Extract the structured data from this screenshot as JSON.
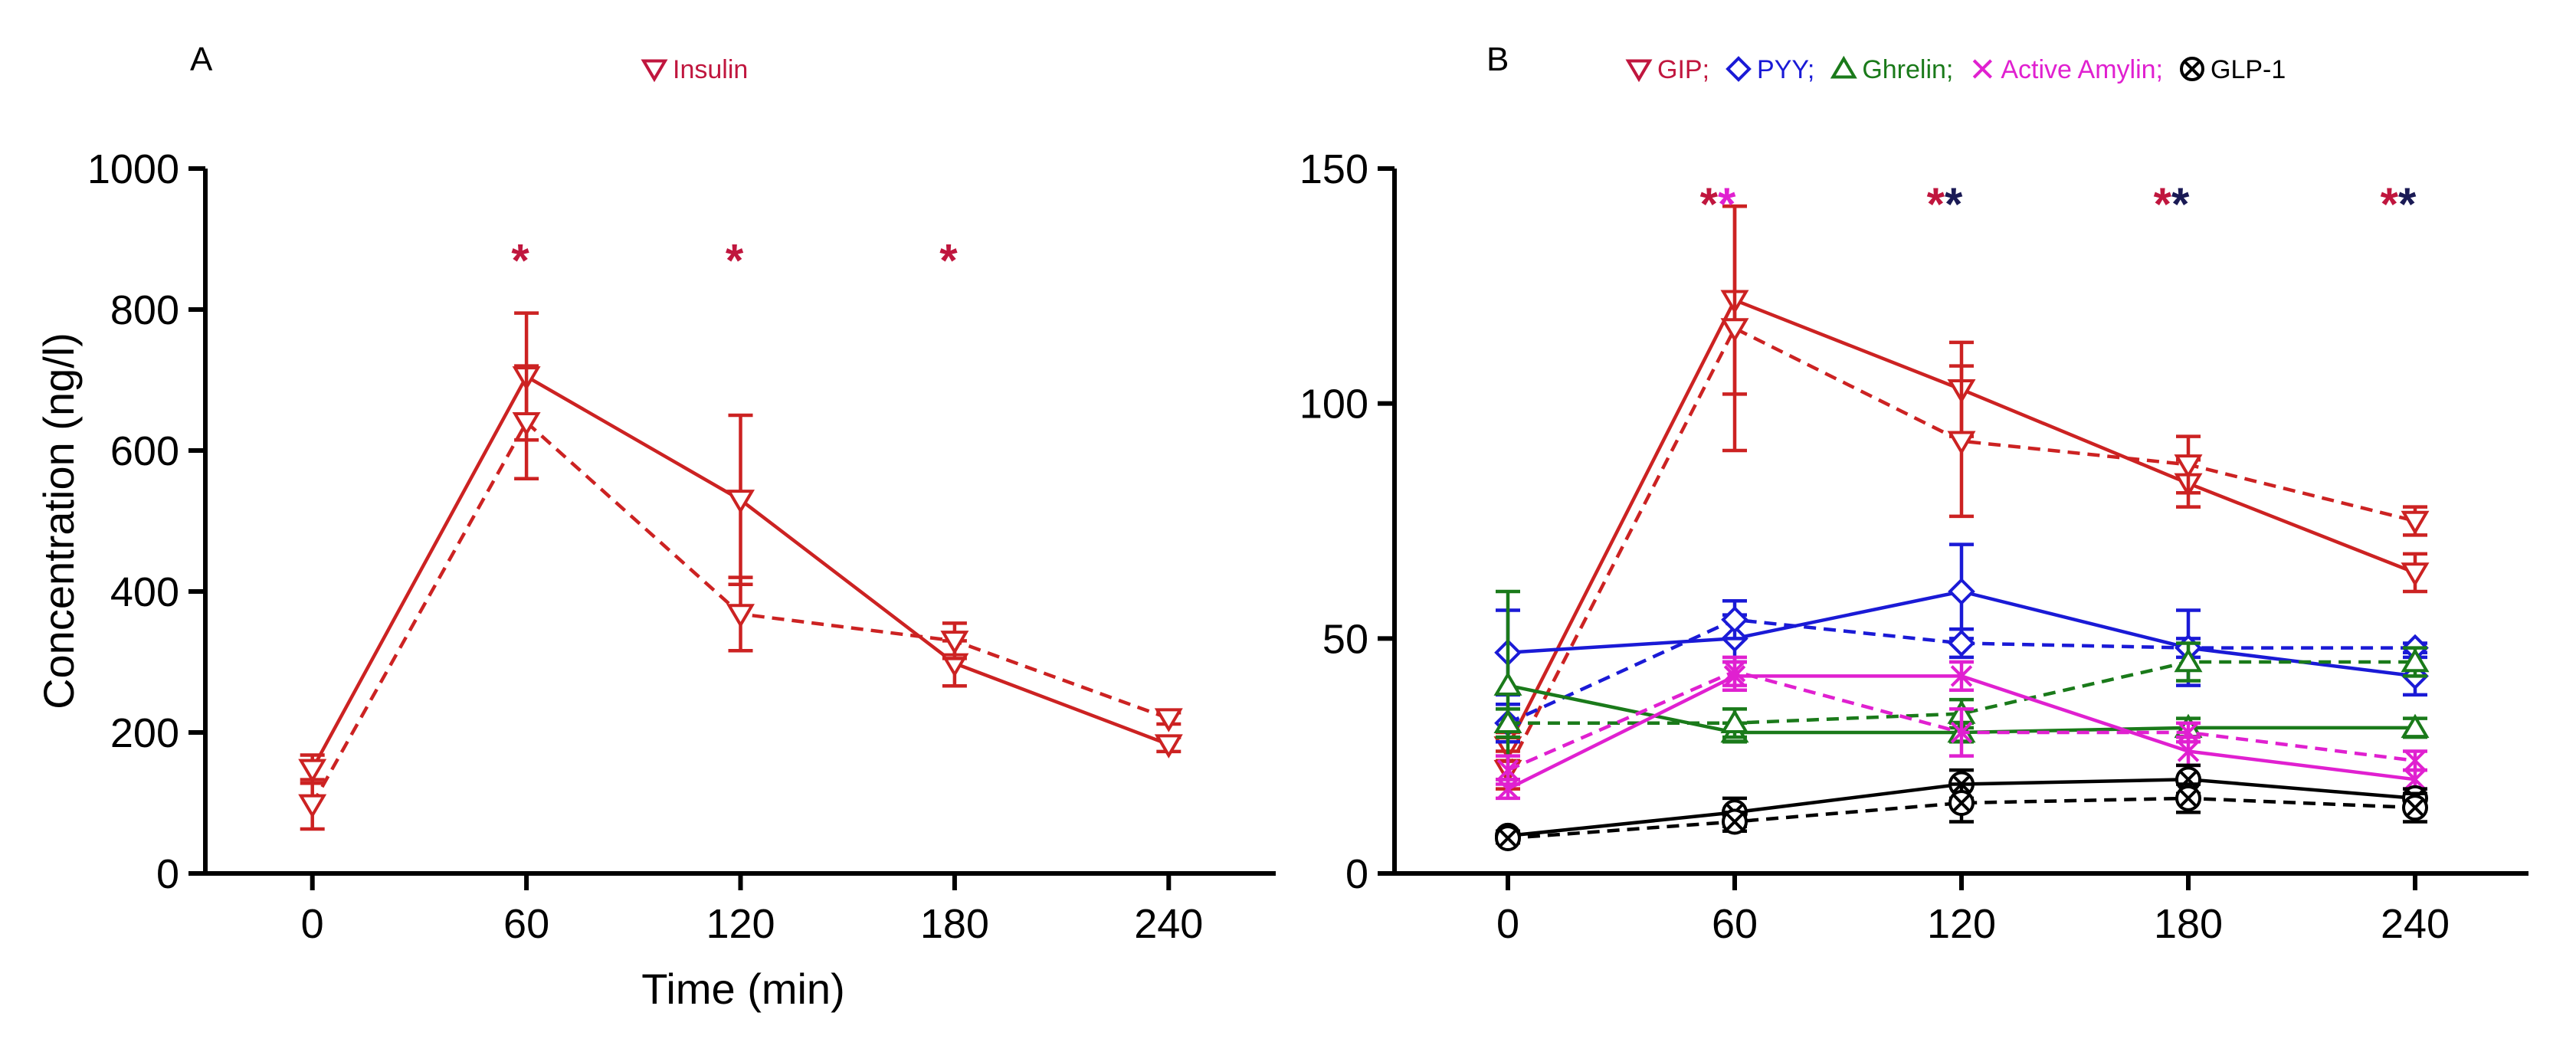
{
  "chart_data": [
    {
      "panel": "A",
      "type": "line",
      "xlabel": "Time (min)",
      "ylabel": "Concentration (ng/l)",
      "x": [
        0,
        60,
        120,
        180,
        240
      ],
      "xlim": [
        -30,
        270
      ],
      "ylim": [
        0,
        1000
      ],
      "yticks": [
        0,
        200,
        400,
        600,
        800,
        1000
      ],
      "xticks": [
        0,
        60,
        120,
        180,
        240
      ],
      "legend": [
        {
          "label": "Insulin",
          "marker": "triangle-down",
          "color": "#c0163e"
        }
      ],
      "series": [
        {
          "name": "Insulin (solid)",
          "style": "solid",
          "marker": "triangle-down",
          "color": "#cc2222",
          "values": [
            148,
            705,
            530,
            298,
            183
          ],
          "err": [
            20,
            90,
            120,
            32,
            10
          ]
        },
        {
          "name": "Insulin (dashed)",
          "style": "dashed",
          "marker": "triangle-down",
          "color": "#cc2222",
          "values": [
            98,
            640,
            368,
            330,
            220
          ],
          "err": [
            35,
            80,
            52,
            25,
            8
          ]
        }
      ],
      "annotations": [
        {
          "x": 60,
          "y": 880,
          "marks": [
            {
              "text": "*",
              "color": "#c0163e"
            }
          ]
        },
        {
          "x": 120,
          "y": 880,
          "marks": [
            {
              "text": "*",
              "color": "#c0163e"
            }
          ]
        },
        {
          "x": 180,
          "y": 880,
          "marks": [
            {
              "text": "*",
              "color": "#c0163e"
            }
          ]
        }
      ]
    },
    {
      "panel": "B",
      "type": "line",
      "xlabel": "",
      "ylabel": "",
      "x": [
        0,
        60,
        120,
        180,
        240
      ],
      "xlim": [
        -30,
        270
      ],
      "ylim": [
        0,
        150
      ],
      "yticks": [
        0,
        50,
        100,
        150
      ],
      "xticks": [
        0,
        60,
        120,
        180,
        240
      ],
      "legend": [
        {
          "label": "GIP;",
          "marker": "triangle-down",
          "color": "#c0163e"
        },
        {
          "label": "PYY;",
          "marker": "diamond",
          "color": "#1a1ad6"
        },
        {
          "label": "Ghrelin;",
          "marker": "triangle-up",
          "color": "#1a7a1a"
        },
        {
          "label": "Active Amylin;",
          "marker": "x",
          "color": "#e020d0"
        },
        {
          "label": "GLP-1",
          "marker": "circle-x",
          "color": "#000000"
        }
      ],
      "series": [
        {
          "name": "GIP (solid)",
          "style": "solid",
          "marker": "triangle-down",
          "color": "#cc2222",
          "values": [
            27,
            122,
            103,
            83,
            64
          ],
          "err": [
            3,
            20,
            10,
            5,
            4
          ]
        },
        {
          "name": "GIP (dashed)",
          "style": "dashed",
          "marker": "triangle-down",
          "color": "#cc2222",
          "values": [
            22,
            116,
            92,
            87,
            75
          ],
          "err": [
            4,
            26,
            16,
            6,
            3
          ]
        },
        {
          "name": "PYY (solid)",
          "style": "solid",
          "marker": "diamond",
          "color": "#1a1ad6",
          "values": [
            47,
            50,
            60,
            48,
            42
          ],
          "err": [
            9,
            5,
            10,
            8,
            4
          ]
        },
        {
          "name": "PYY (dashed)",
          "style": "dashed",
          "marker": "diamond",
          "color": "#1a1ad6",
          "values": [
            32,
            54,
            49,
            48,
            48
          ],
          "err": [
            4,
            4,
            3,
            2,
            1
          ]
        },
        {
          "name": "Ghrelin (solid)",
          "style": "solid",
          "marker": "triangle-up",
          "color": "#1a7a1a",
          "values": [
            40,
            30,
            30,
            31,
            31
          ],
          "err": [
            20,
            2,
            2,
            2,
            2
          ]
        },
        {
          "name": "Ghrelin (dashed)",
          "style": "dashed",
          "marker": "triangle-up",
          "color": "#1a7a1a",
          "values": [
            32,
            32,
            34,
            45,
            45
          ],
          "err": [
            3,
            3,
            3,
            4,
            3
          ]
        },
        {
          "name": "Active Amylin (solid)",
          "style": "solid",
          "marker": "x",
          "color": "#e020d0",
          "values": [
            18,
            42,
            42,
            26,
            20
          ],
          "err": [
            2,
            3,
            3,
            3,
            2
          ]
        },
        {
          "name": "Active Amylin (dashed)",
          "style": "dashed",
          "marker": "x",
          "color": "#e020d0",
          "values": [
            22,
            43,
            30,
            30,
            24
          ],
          "err": [
            3,
            3,
            5,
            2,
            2
          ]
        },
        {
          "name": "GLP-1 (solid)",
          "style": "solid",
          "marker": "circle-x",
          "color": "#000000",
          "values": [
            8,
            13,
            19,
            20,
            16
          ],
          "err": [
            1,
            3,
            3,
            3,
            2
          ]
        },
        {
          "name": "GLP-1 (dashed)",
          "style": "dashed",
          "marker": "circle-x",
          "color": "#000000",
          "values": [
            7.5,
            11,
            15,
            16,
            14
          ],
          "err": [
            1,
            2,
            4,
            3,
            3
          ]
        }
      ],
      "annotations": [
        {
          "x": 60,
          "y": 144,
          "marks": [
            {
              "text": "*",
              "color": "#c0163e"
            },
            {
              "text": "*",
              "color": "#e020d0"
            }
          ]
        },
        {
          "x": 120,
          "y": 144,
          "marks": [
            {
              "text": "*",
              "color": "#c0163e"
            },
            {
              "text": "*",
              "color": "#1a1a55"
            }
          ]
        },
        {
          "x": 180,
          "y": 144,
          "marks": [
            {
              "text": "*",
              "color": "#c0163e"
            },
            {
              "text": "*",
              "color": "#1a1a55"
            }
          ]
        },
        {
          "x": 240,
          "y": 144,
          "marks": [
            {
              "text": "*",
              "color": "#c0163e"
            },
            {
              "text": "*",
              "color": "#1a1a55"
            }
          ]
        }
      ]
    }
  ]
}
